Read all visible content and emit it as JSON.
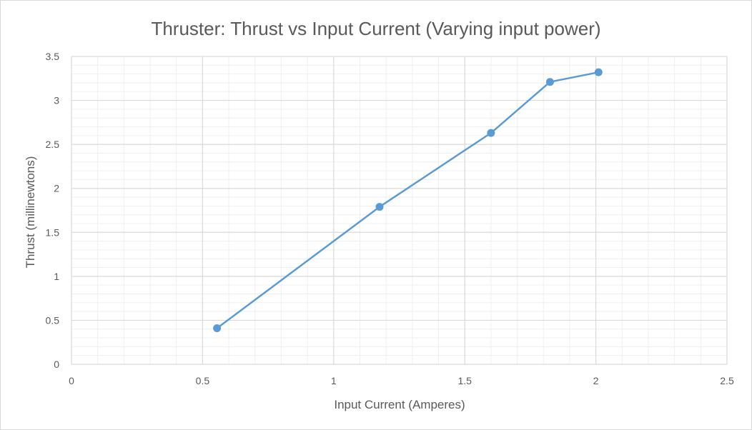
{
  "chart_data": {
    "type": "scatter",
    "title": "Thruster: Thrust vs Input Current (Varying input power)",
    "xlabel": "Input Current (Amperes)",
    "ylabel": "Thrust (millinewtons)",
    "xlim": [
      0,
      2.5
    ],
    "ylim": [
      0,
      3.5
    ],
    "xticks": [
      0,
      0.5,
      1,
      1.5,
      2,
      2.5
    ],
    "yticks": [
      0,
      0.5,
      1,
      1.5,
      2,
      2.5,
      3,
      3.5
    ],
    "x_tick_labels": [
      "0",
      "0.5",
      "1",
      "1.5",
      "2",
      "2.5"
    ],
    "y_tick_labels": [
      "0",
      "0.5",
      "1",
      "1.5",
      "2",
      "2.5",
      "3",
      "3.5"
    ],
    "x_minor_step": 0.1,
    "y_minor_step": 0.1,
    "grid": true,
    "line_connected": true,
    "series": [
      {
        "x": [
          0.555,
          1.175,
          1.6,
          1.825,
          2.01
        ],
        "y": [
          0.41,
          1.79,
          2.63,
          3.21,
          3.32
        ],
        "color": "#5b9bd5"
      }
    ],
    "colors": {
      "major_grid": "#d9d9d9",
      "minor_grid": "#efefef",
      "text": "#595959",
      "series": "#5b9bd5"
    }
  }
}
